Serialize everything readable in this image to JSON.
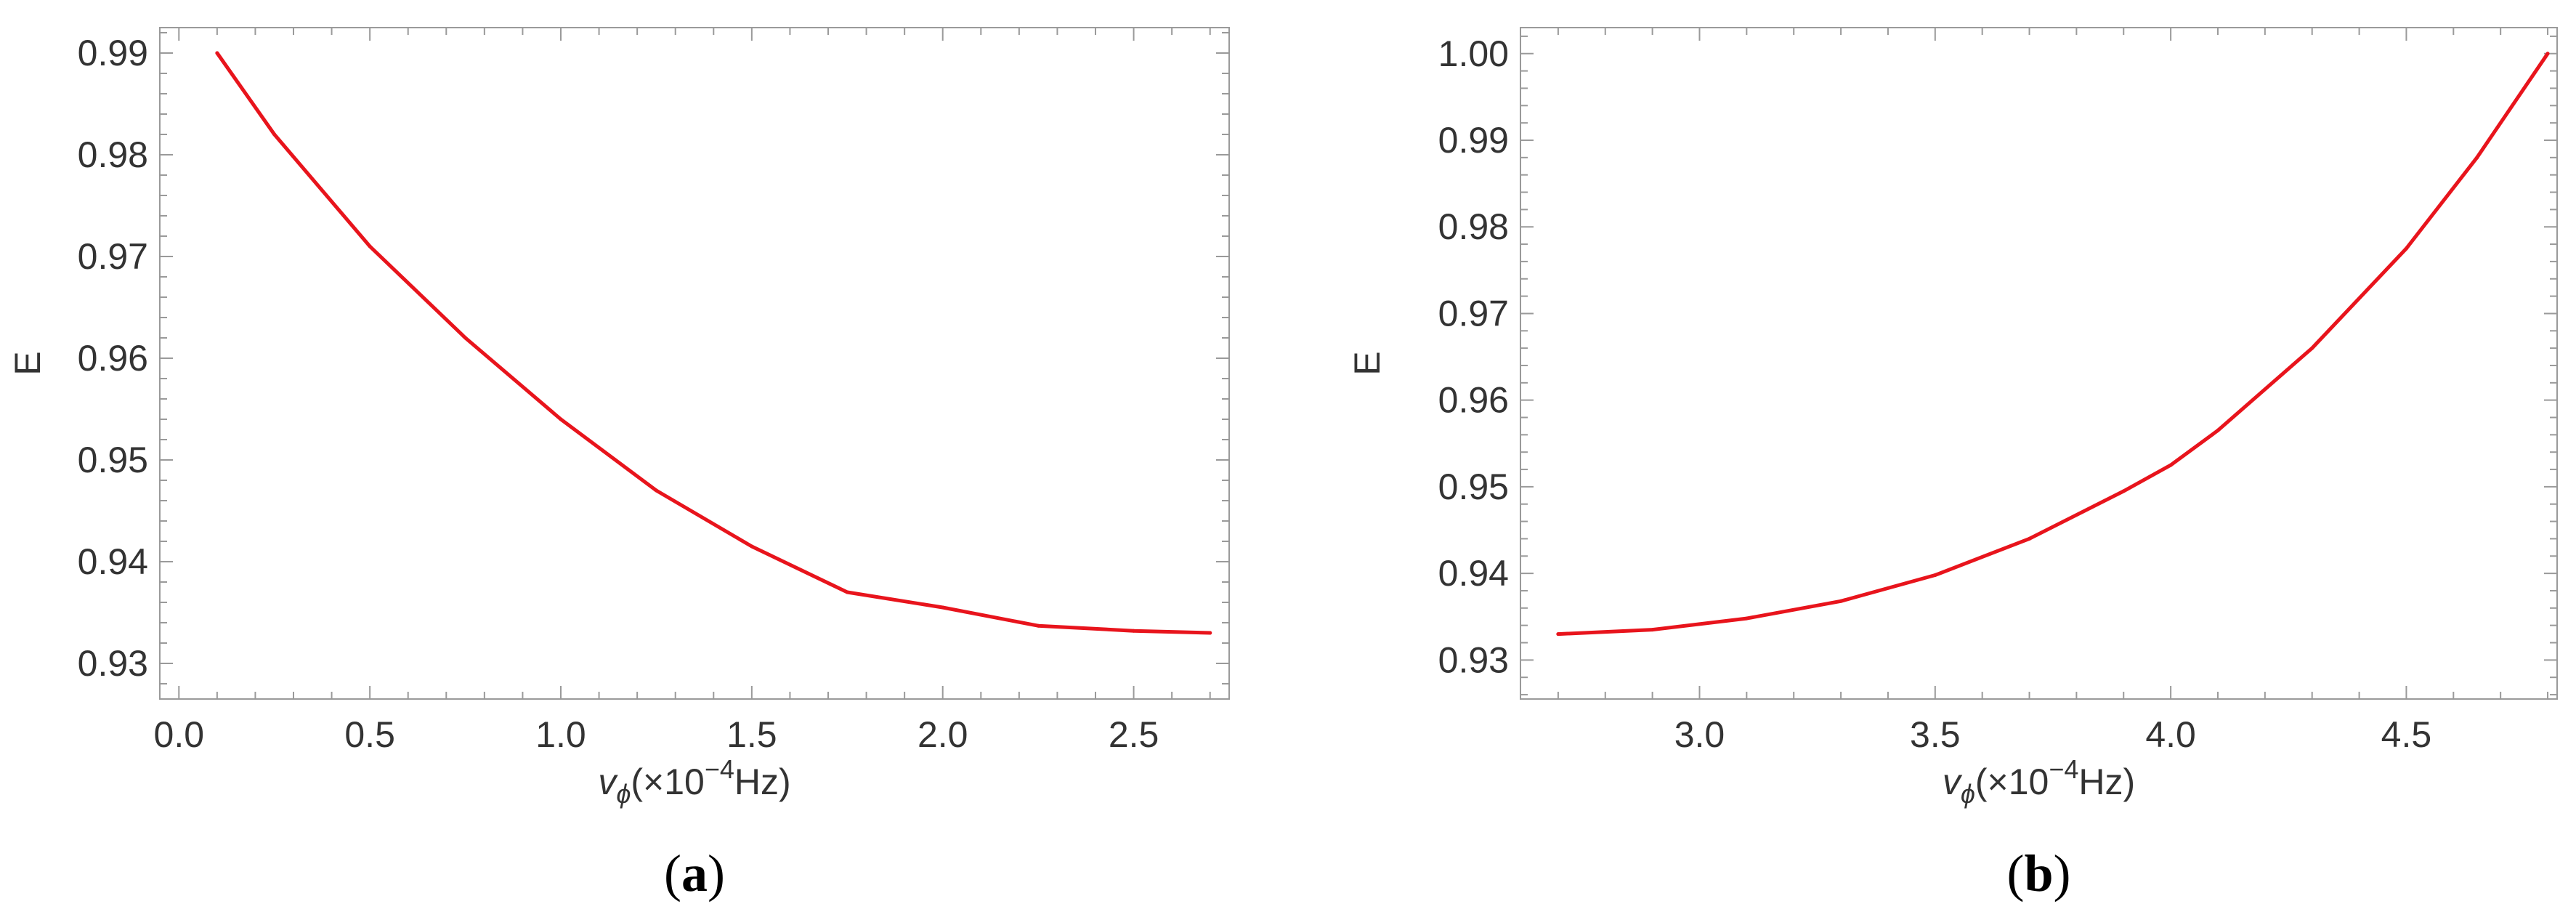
{
  "chart_data": [
    {
      "type": "line",
      "panel_label": "(a)",
      "xlabel_symbol": "v",
      "xlabel_subscript": "ϕ",
      "xlabel_unit_prefix": "(×10",
      "xlabel_unit_exp": "−4",
      "xlabel_unit_suffix": "Hz)",
      "ylabel": "E",
      "xlim": [
        -0.05,
        2.75
      ],
      "ylim": [
        0.9265,
        0.9925
      ],
      "xticks": [
        "0.0",
        "0.5",
        "1.0",
        "1.5",
        "2.0",
        "2.5"
      ],
      "yticks": [
        "0.93",
        "0.94",
        "0.95",
        "0.96",
        "0.97",
        "0.98",
        "0.99"
      ],
      "grid": false,
      "series": [
        {
          "color": "#e8141c",
          "x": [
            0.1,
            0.25,
            0.5,
            0.75,
            1.0,
            1.25,
            1.5,
            1.75,
            2.0,
            2.25,
            2.5,
            2.7
          ],
          "y": [
            0.99,
            0.982,
            0.971,
            0.962,
            0.954,
            0.947,
            0.9415,
            0.937,
            0.9355,
            0.9337,
            0.9332,
            0.933
          ]
        }
      ]
    },
    {
      "type": "line",
      "panel_label": "(b)",
      "xlabel_symbol": "v",
      "xlabel_subscript": "ϕ",
      "xlabel_unit_prefix": "(×10",
      "xlabel_unit_exp": "−4",
      "xlabel_unit_suffix": "Hz)",
      "ylabel": "E",
      "xlim": [
        2.62,
        4.82
      ],
      "ylim": [
        0.9255,
        1.003
      ],
      "xticks": [
        "3.0",
        "3.5",
        "4.0",
        "4.5"
      ],
      "yticks": [
        "0.93",
        "0.94",
        "0.95",
        "0.96",
        "0.97",
        "0.98",
        "0.99",
        "1.00"
      ],
      "grid": false,
      "series": [
        {
          "color": "#e8141c",
          "x": [
            2.7,
            2.9,
            3.1,
            3.3,
            3.5,
            3.7,
            3.9,
            4.0,
            4.1,
            4.3,
            4.5,
            4.65,
            4.8
          ],
          "y": [
            0.933,
            0.9335,
            0.9348,
            0.9368,
            0.9398,
            0.944,
            0.9495,
            0.9525,
            0.9565,
            0.966,
            0.9775,
            0.988,
            1.0
          ]
        }
      ]
    }
  ]
}
